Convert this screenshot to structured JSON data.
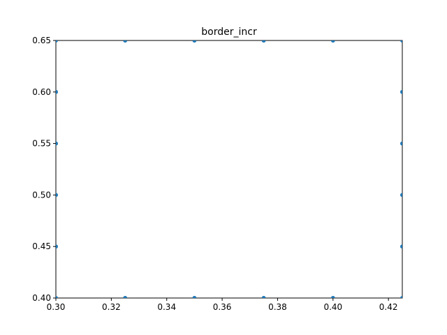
{
  "chart_data": {
    "type": "scatter",
    "title": "border_incr",
    "xlabel": "",
    "ylabel": "",
    "xlim": [
      0.3,
      0.425
    ],
    "ylim": [
      0.4,
      0.65
    ],
    "grid": false,
    "x_ticks": [
      {
        "value": 0.3,
        "label": "0.30"
      },
      {
        "value": 0.32,
        "label": "0.32"
      },
      {
        "value": 0.34,
        "label": "0.34"
      },
      {
        "value": 0.36,
        "label": "0.36"
      },
      {
        "value": 0.38,
        "label": "0.38"
      },
      {
        "value": 0.4,
        "label": "0.40"
      },
      {
        "value": 0.42,
        "label": "0.42"
      }
    ],
    "y_ticks": [
      {
        "value": 0.4,
        "label": "0.40"
      },
      {
        "value": 0.45,
        "label": "0.45"
      },
      {
        "value": 0.5,
        "label": "0.50"
      },
      {
        "value": 0.55,
        "label": "0.55"
      },
      {
        "value": 0.6,
        "label": "0.60"
      },
      {
        "value": 0.65,
        "label": "0.65"
      }
    ],
    "series": [
      {
        "color": "#1f77b4",
        "points": [
          {
            "x": 0.3,
            "y": 0.4
          },
          {
            "x": 0.325,
            "y": 0.4
          },
          {
            "x": 0.35,
            "y": 0.4
          },
          {
            "x": 0.375,
            "y": 0.4
          },
          {
            "x": 0.4,
            "y": 0.4
          },
          {
            "x": 0.425,
            "y": 0.4
          },
          {
            "x": 0.3,
            "y": 0.45
          },
          {
            "x": 0.3,
            "y": 0.5
          },
          {
            "x": 0.3,
            "y": 0.55
          },
          {
            "x": 0.3,
            "y": 0.6
          },
          {
            "x": 0.3,
            "y": 0.65
          },
          {
            "x": 0.425,
            "y": 0.45
          },
          {
            "x": 0.425,
            "y": 0.5
          },
          {
            "x": 0.425,
            "y": 0.55
          },
          {
            "x": 0.425,
            "y": 0.6
          },
          {
            "x": 0.325,
            "y": 0.65
          },
          {
            "x": 0.35,
            "y": 0.65
          },
          {
            "x": 0.375,
            "y": 0.65
          },
          {
            "x": 0.4,
            "y": 0.65
          },
          {
            "x": 0.425,
            "y": 0.65
          }
        ]
      }
    ]
  }
}
